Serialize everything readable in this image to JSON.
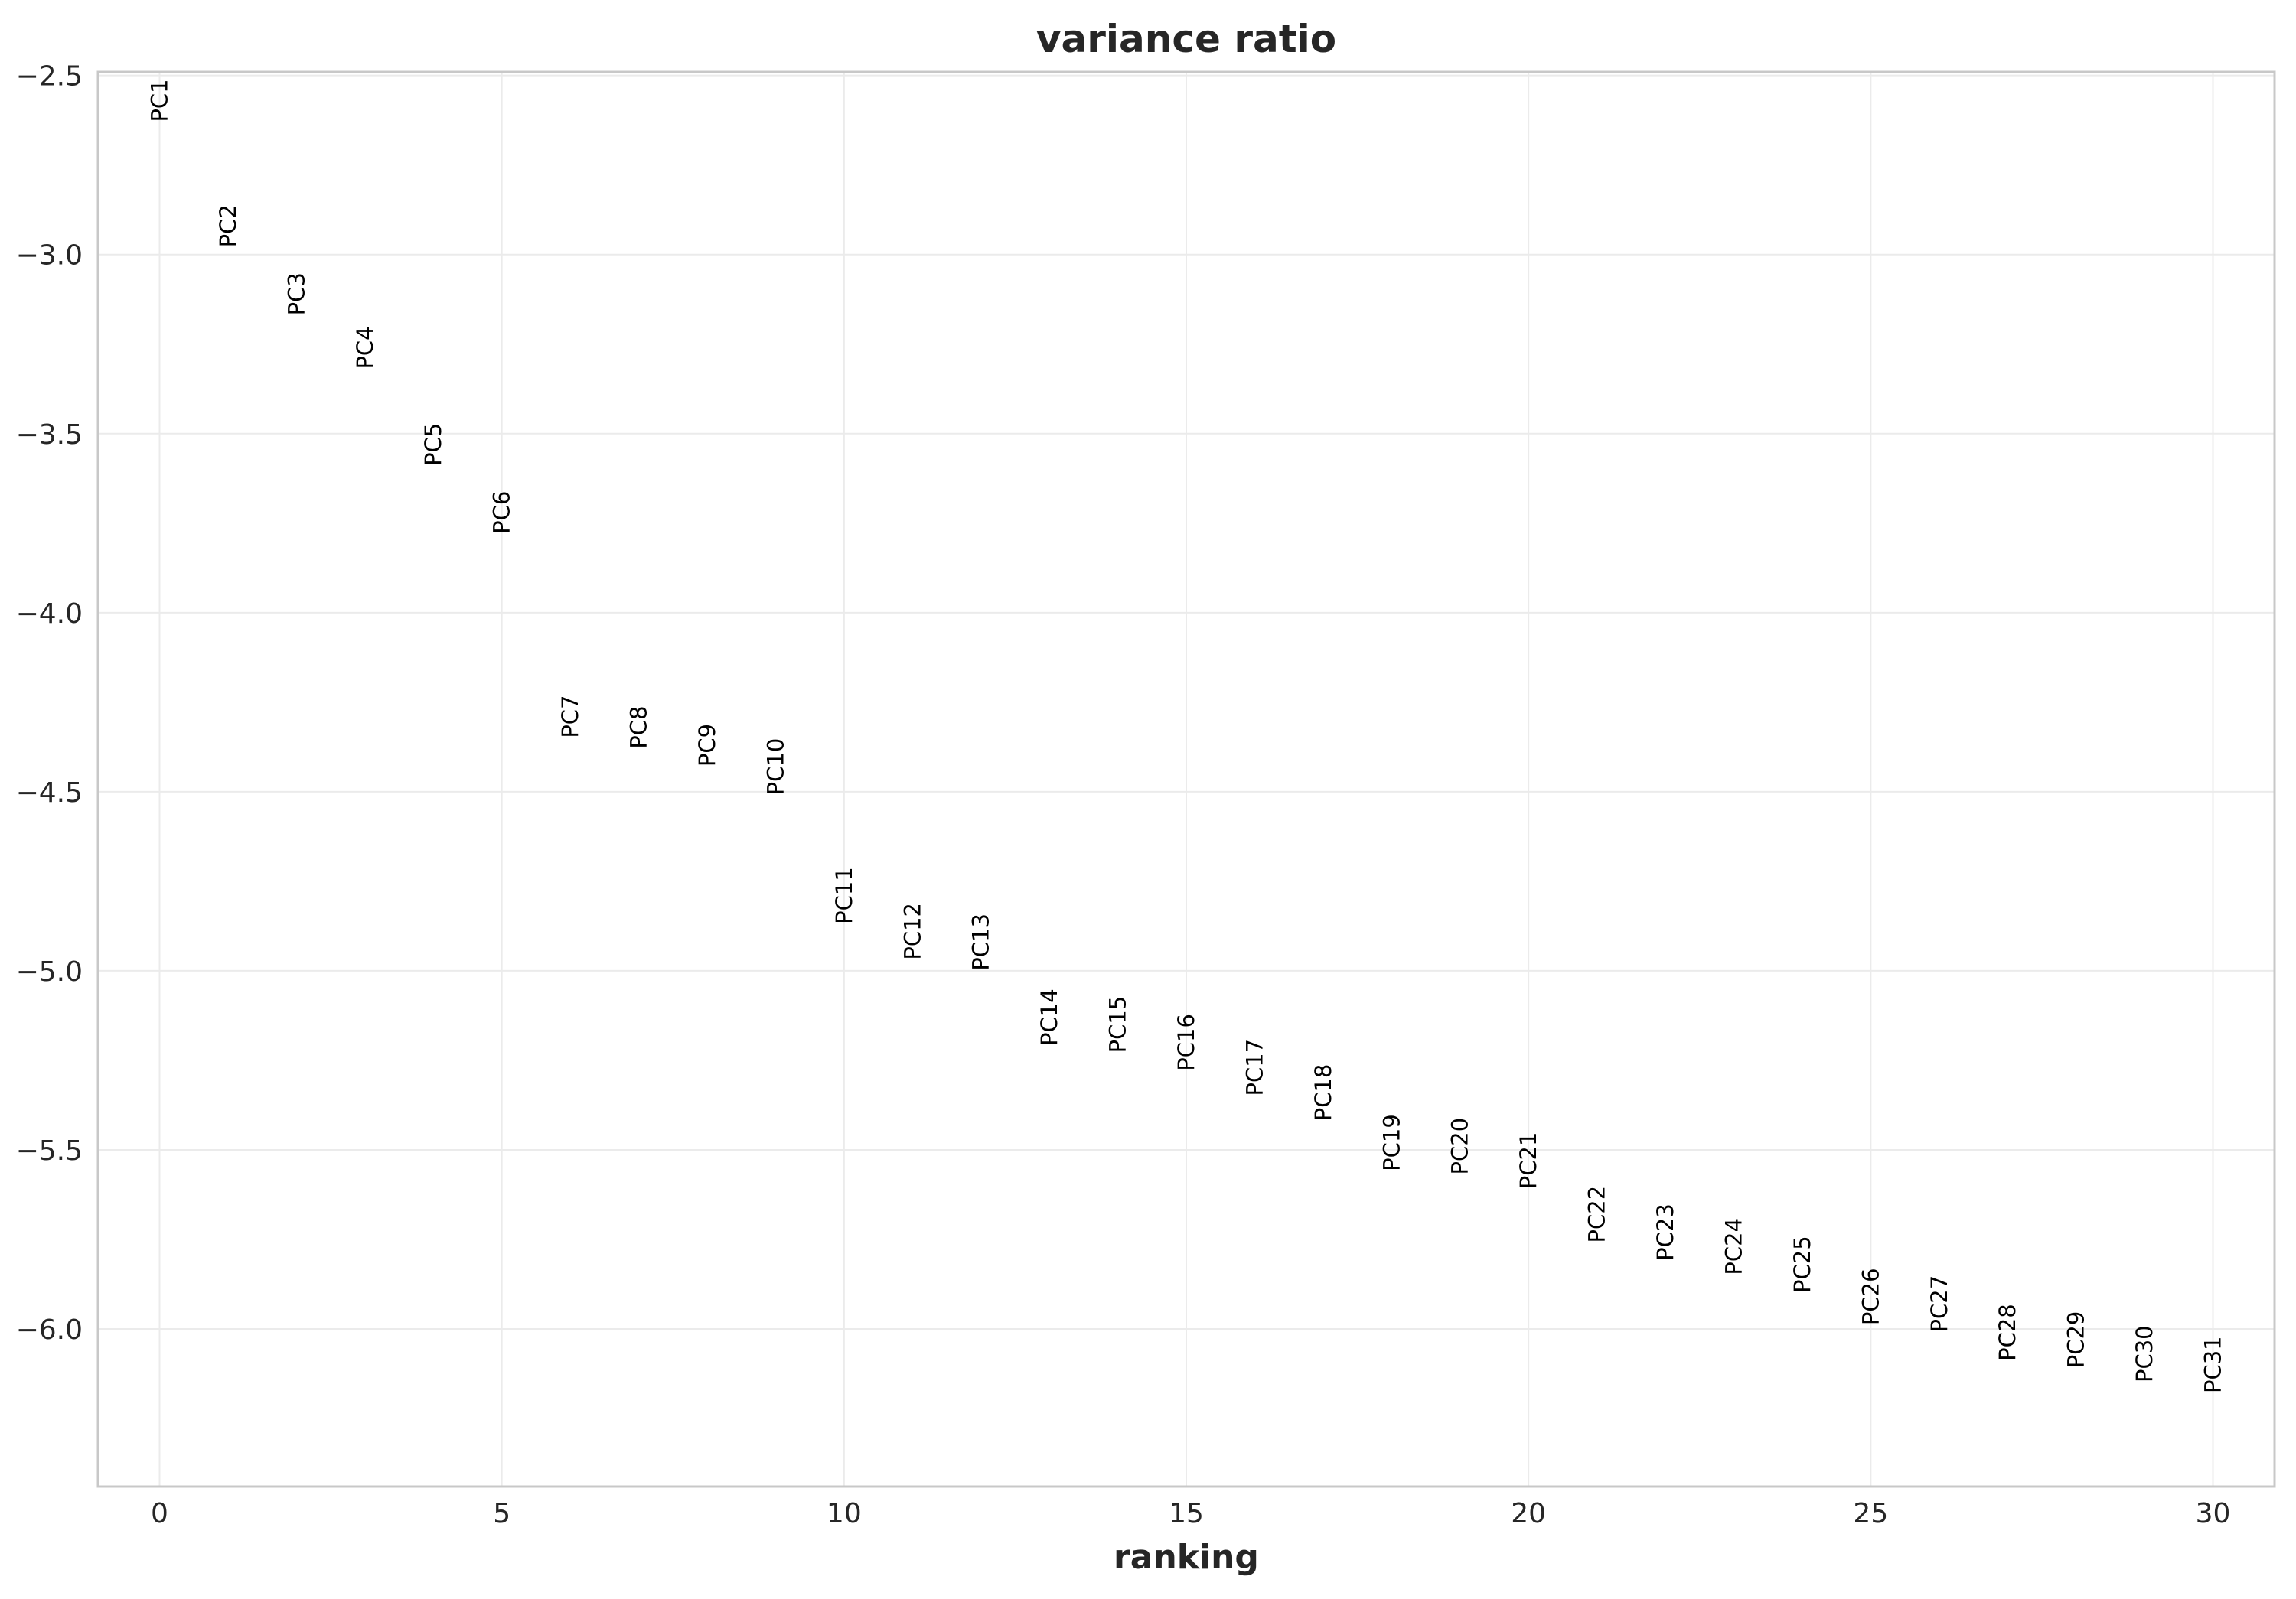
{
  "chart_data": {
    "type": "scatter",
    "title": "variance ratio",
    "xlabel": "ranking",
    "ylabel": "",
    "xlim": [
      -0.9,
      30.9
    ],
    "ylim": [
      -6.44,
      -2.49
    ],
    "xticks": [
      0,
      5,
      10,
      15,
      20,
      25,
      30
    ],
    "yticks": [
      -2.5,
      -3.0,
      -3.5,
      -4.0,
      -4.5,
      -5.0,
      -5.5,
      -6.0
    ],
    "ytick_labels": [
      "−2.5",
      "−3.0",
      "−3.5",
      "−4.0",
      "−4.5",
      "−5.0",
      "−5.5",
      "−6.0"
    ],
    "grid": true,
    "points": [
      {
        "x": 0,
        "y": -2.51,
        "label": "PC1"
      },
      {
        "x": 1,
        "y": -2.86,
        "label": "PC2"
      },
      {
        "x": 2,
        "y": -3.05,
        "label": "PC3"
      },
      {
        "x": 3,
        "y": -3.2,
        "label": "PC4"
      },
      {
        "x": 4,
        "y": -3.47,
        "label": "PC5"
      },
      {
        "x": 5,
        "y": -3.66,
        "label": "PC6"
      },
      {
        "x": 6,
        "y": -4.23,
        "label": "PC7"
      },
      {
        "x": 7,
        "y": -4.26,
        "label": "PC8"
      },
      {
        "x": 8,
        "y": -4.31,
        "label": "PC9"
      },
      {
        "x": 9,
        "y": -4.35,
        "label": "PC10"
      },
      {
        "x": 10,
        "y": -4.71,
        "label": "PC11"
      },
      {
        "x": 11,
        "y": -4.81,
        "label": "PC12"
      },
      {
        "x": 12,
        "y": -4.84,
        "label": "PC13"
      },
      {
        "x": 13,
        "y": -5.05,
        "label": "PC14"
      },
      {
        "x": 14,
        "y": -5.07,
        "label": "PC15"
      },
      {
        "x": 15,
        "y": -5.12,
        "label": "PC16"
      },
      {
        "x": 16,
        "y": -5.19,
        "label": "PC17"
      },
      {
        "x": 17,
        "y": -5.26,
        "label": "PC18"
      },
      {
        "x": 18,
        "y": -5.4,
        "label": "PC19"
      },
      {
        "x": 19,
        "y": -5.41,
        "label": "PC20"
      },
      {
        "x": 20,
        "y": -5.45,
        "label": "PC21"
      },
      {
        "x": 21,
        "y": -5.6,
        "label": "PC22"
      },
      {
        "x": 22,
        "y": -5.65,
        "label": "PC23"
      },
      {
        "x": 23,
        "y": -5.69,
        "label": "PC24"
      },
      {
        "x": 24,
        "y": -5.74,
        "label": "PC25"
      },
      {
        "x": 25,
        "y": -5.83,
        "label": "PC26"
      },
      {
        "x": 26,
        "y": -5.85,
        "label": "PC27"
      },
      {
        "x": 27,
        "y": -5.93,
        "label": "PC28"
      },
      {
        "x": 28,
        "y": -5.95,
        "label": "PC29"
      },
      {
        "x": 29,
        "y": -5.99,
        "label": "PC30"
      },
      {
        "x": 30,
        "y": -6.02,
        "label": "PC31"
      }
    ]
  }
}
